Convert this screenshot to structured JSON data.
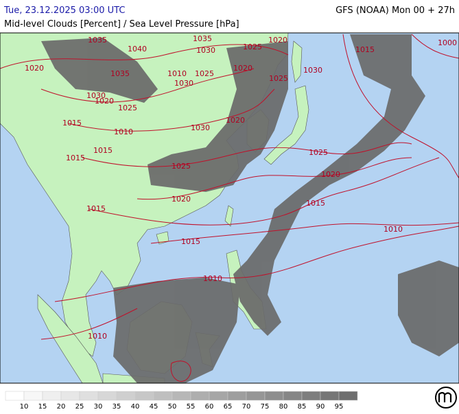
{
  "header": {
    "datetime": "Tue, 23.12.2025 03:00 UTC",
    "model": "GFS (NOAA) Mon 00 + 27h",
    "subtitle": "Mid-level Clouds [Percent] / Sea Level Pressure [hPa]"
  },
  "map": {
    "isobar_labels": [
      "1035",
      "1035",
      "1040",
      "1030",
      "1025",
      "1020",
      "1020",
      "1035",
      "1010",
      "1025",
      "1020",
      "1025",
      "1030",
      "1030",
      "1030",
      "1020",
      "1025",
      "1015",
      "1030",
      "1020",
      "1010",
      "1015",
      "1015",
      "1025",
      "1025",
      "1020",
      "1020",
      "1015",
      "1015",
      "1010",
      "1015",
      "1010",
      "1010",
      "1015",
      "1000"
    ]
  },
  "legend": {
    "labels": [
      10,
      15,
      20,
      25,
      30,
      35,
      40,
      45,
      50,
      55,
      60,
      65,
      70,
      75,
      80,
      85,
      90,
      95
    ]
  }
}
